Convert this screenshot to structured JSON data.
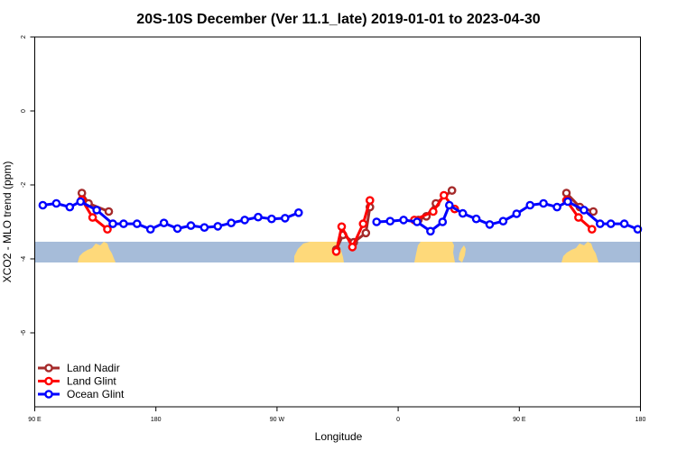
{
  "chart_data": {
    "type": "line",
    "title": "20S-10S December (Ver 11.1_late)   2019-01-01 to 2023-04-30",
    "xlabel": "Longitude",
    "ylabel": "XCO2 - MLO trend (ppm)",
    "xlim": [
      90,
      540
    ],
    "ylim": [
      -8,
      2
    ],
    "y_ticks": [
      -6,
      -4,
      -2,
      0,
      2
    ],
    "y_tick_labels": [
      "-6",
      "-4",
      "-2",
      "0",
      "2"
    ],
    "x_ticks": [
      90,
      180,
      270,
      360,
      450,
      540
    ],
    "x_tick_labels": [
      "90 E",
      "180",
      "90 W",
      "0",
      "90 E",
      "180"
    ],
    "legend_position": "bottom-left",
    "series": [
      {
        "name": "Land Nadir",
        "color": "#a52a2a",
        "segments": [
          [
            [
              125,
              -2.22
            ],
            [
              130,
              -2.5
            ],
            [
              145,
              -2.72
            ]
          ],
          [
            [
              314,
              -3.75
            ],
            [
              319,
              -3.35
            ],
            [
              327,
              -3.55
            ],
            [
              336,
              -3.3
            ],
            [
              339,
              -2.6
            ]
          ],
          [
            [
              375,
              -2.95
            ],
            [
              381,
              -2.85
            ],
            [
              388,
              -2.5
            ],
            [
              400,
              -2.15
            ]
          ],
          [
            [
              485,
              -2.22
            ],
            [
              495,
              -2.6
            ],
            [
              505,
              -2.72
            ]
          ]
        ]
      },
      {
        "name": "Land Glint",
        "color": "#ff0000",
        "segments": [
          [
            [
              125,
              -2.4
            ],
            [
              133,
              -2.88
            ],
            [
              144,
              -3.2
            ]
          ],
          [
            [
              314,
              -3.8
            ],
            [
              318,
              -3.13
            ],
            [
              326,
              -3.68
            ],
            [
              334,
              -3.05
            ],
            [
              339,
              -2.42
            ]
          ],
          [
            [
              372,
              -2.95
            ],
            [
              386,
              -2.72
            ],
            [
              394,
              -2.28
            ],
            [
              402,
              -2.65
            ]
          ],
          [
            [
              485,
              -2.42
            ],
            [
              494,
              -2.88
            ],
            [
              504,
              -3.2
            ]
          ]
        ]
      },
      {
        "name": "Ocean Glint",
        "color": "#0000ff",
        "segments": [
          [
            [
              96,
              -2.55
            ],
            [
              106,
              -2.5
            ],
            [
              116,
              -2.6
            ],
            [
              124,
              -2.45
            ],
            [
              136,
              -2.68
            ],
            [
              148,
              -3.05
            ],
            [
              156,
              -3.05
            ],
            [
              166,
              -3.05
            ],
            [
              176,
              -3.2
            ],
            [
              186,
              -3.03
            ],
            [
              196,
              -3.18
            ],
            [
              206,
              -3.1
            ],
            [
              216,
              -3.15
            ],
            [
              226,
              -3.12
            ],
            [
              236,
              -3.03
            ],
            [
              246,
              -2.95
            ],
            [
              256,
              -2.87
            ],
            [
              266,
              -2.92
            ],
            [
              276,
              -2.9
            ],
            [
              286,
              -2.75
            ]
          ],
          [
            [
              344,
              -3.0
            ],
            [
              354,
              -2.98
            ],
            [
              364,
              -2.95
            ],
            [
              374,
              -3.0
            ],
            [
              384,
              -3.25
            ],
            [
              393,
              -3.0
            ],
            [
              398,
              -2.55
            ],
            [
              408,
              -2.77
            ],
            [
              418,
              -2.92
            ],
            [
              428,
              -3.07
            ],
            [
              438,
              -2.98
            ],
            [
              448,
              -2.78
            ],
            [
              458,
              -2.55
            ],
            [
              468,
              -2.5
            ],
            [
              478,
              -2.6
            ],
            [
              486,
              -2.45
            ],
            [
              498,
              -2.68
            ],
            [
              510,
              -3.05
            ],
            [
              518,
              -3.05
            ],
            [
              528,
              -3.05
            ],
            [
              538,
              -3.2
            ]
          ]
        ]
      }
    ]
  },
  "map_strip": {
    "ocean_color": "#a6bcd9",
    "land_color": "#fed97a"
  }
}
